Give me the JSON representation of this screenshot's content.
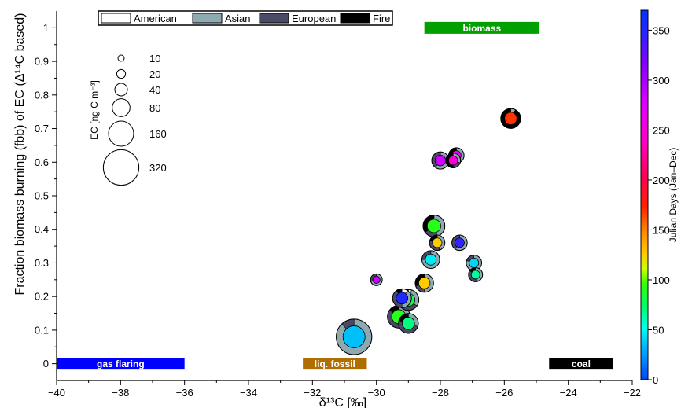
{
  "chart_data": {
    "type": "scatter",
    "title": "",
    "xlabel": "δ¹³C [‰]",
    "ylabel": "Fraction biomass burning (fbb) of EC (Δ¹⁴C based)",
    "xlim": [
      -40,
      -22
    ],
    "ylim": [
      -0.05,
      1.05
    ],
    "x_ticks": [
      "−40",
      "−38",
      "−36",
      "−34",
      "−32",
      "−30",
      "−28",
      "−26",
      "−24",
      "−22"
    ],
    "y_ticks": [
      "0",
      "0.1",
      "0.2",
      "0.3",
      "0.4",
      "0.5",
      "0.6",
      "0.7",
      "0.8",
      "0.9",
      "1"
    ],
    "legend": {
      "placement": "top",
      "entries": [
        {
          "name": "American",
          "color": "#ffffff"
        },
        {
          "name": "Asian",
          "color": "#8fa9b0"
        },
        {
          "name": "European",
          "color": "#4a4a66"
        },
        {
          "name": "Fire",
          "color": "#000000"
        }
      ]
    },
    "size_legend": {
      "title": "EC [ng C m⁻³]",
      "values": [
        "10",
        "20",
        "40",
        "80",
        "160",
        "320"
      ]
    },
    "colorbar": {
      "title": "Julian Days (Jan–Dec)",
      "range": [
        0,
        370
      ],
      "ticks": [
        "0",
        "50",
        "100",
        "150",
        "200",
        "250",
        "300",
        "350"
      ]
    },
    "regions": [
      {
        "label": "gas flaring",
        "x": [
          -40,
          -36
        ],
        "y": 0,
        "color": "#0000ff"
      },
      {
        "label": "liq. fossil",
        "x": [
          -32.3,
          -30.3
        ],
        "y": 0,
        "color": "#b06e00"
      },
      {
        "label": "coal",
        "x": [
          -24.6,
          -22.6
        ],
        "y": 0,
        "color": "#000000"
      },
      {
        "label": "biomass",
        "x": [
          -28.5,
          -24.9
        ],
        "y": 1.0,
        "color": "#00a000"
      }
    ],
    "points": [
      {
        "x": -30.7,
        "y": 0.08,
        "ec": 320,
        "day": 35,
        "mix": [
          0,
          0.88,
          0.12,
          0
        ]
      },
      {
        "x": -29.3,
        "y": 0.14,
        "ec": 130,
        "day": 90,
        "mix": [
          0,
          0.25,
          0.6,
          0.15
        ]
      },
      {
        "x": -29.0,
        "y": 0.12,
        "ec": 100,
        "day": 70,
        "mix": [
          0,
          0.3,
          0.5,
          0.2
        ]
      },
      {
        "x": -29.0,
        "y": 0.19,
        "ec": 110,
        "day": 80,
        "mix": [
          0.05,
          0.3,
          0.5,
          0.15
        ]
      },
      {
        "x": -29.2,
        "y": 0.195,
        "ec": 90,
        "day": 355,
        "mix": [
          0.1,
          0.4,
          0.4,
          0.1
        ]
      },
      {
        "x": -28.5,
        "y": 0.24,
        "ec": 85,
        "day": 125,
        "mix": [
          0,
          0.5,
          0.2,
          0.3
        ]
      },
      {
        "x": -30.0,
        "y": 0.25,
        "ec": 35,
        "day": 285,
        "mix": [
          0,
          0.7,
          0.3,
          0
        ]
      },
      {
        "x": -28.3,
        "y": 0.31,
        "ec": 80,
        "day": 45,
        "mix": [
          0,
          0.75,
          0.25,
          0
        ]
      },
      {
        "x": -28.1,
        "y": 0.36,
        "ec": 60,
        "day": 125,
        "mix": [
          0,
          0.45,
          0.35,
          0.2
        ]
      },
      {
        "x": -28.2,
        "y": 0.41,
        "ec": 120,
        "day": 90,
        "mix": [
          0,
          0.45,
          0.2,
          0.35
        ]
      },
      {
        "x": -27.4,
        "y": 0.36,
        "ec": 60,
        "day": 345,
        "mix": [
          0,
          0.6,
          0.4,
          0
        ]
      },
      {
        "x": -26.95,
        "y": 0.3,
        "ec": 60,
        "day": 40,
        "mix": [
          0,
          0.8,
          0.2,
          0
        ]
      },
      {
        "x": -26.9,
        "y": 0.265,
        "ec": 50,
        "day": 65,
        "mix": [
          0,
          0.45,
          0.4,
          0.15
        ]
      },
      {
        "x": -28.0,
        "y": 0.605,
        "ec": 75,
        "day": 285,
        "mix": [
          0,
          0.6,
          0.4,
          0
        ]
      },
      {
        "x": -27.5,
        "y": 0.62,
        "ec": 60,
        "day": 265,
        "mix": [
          0,
          0.45,
          0.25,
          0.3
        ]
      },
      {
        "x": -27.6,
        "y": 0.605,
        "ec": 55,
        "day": 250,
        "mix": [
          0,
          0.3,
          0.2,
          0.5
        ]
      },
      {
        "x": -25.8,
        "y": 0.73,
        "ec": 100,
        "day": 170,
        "mix": [
          0,
          0.08,
          0,
          0.92
        ]
      }
    ]
  }
}
